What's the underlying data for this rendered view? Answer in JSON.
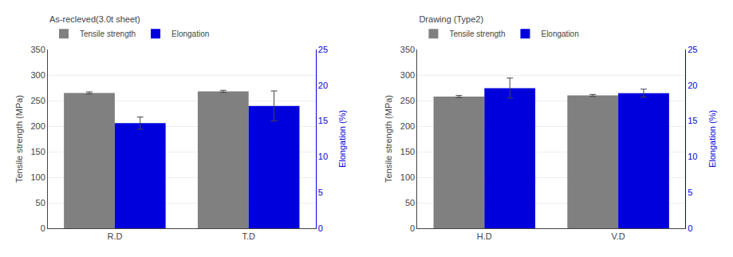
{
  "chart_data": [
    {
      "type": "bar",
      "title": "As-recleved(3.0t sheet)",
      "categories": [
        "R.D",
        "T.D"
      ],
      "series": [
        {
          "name": "Tensile strength",
          "color": "#808080",
          "values": [
            265,
            268
          ],
          "errors": [
            2,
            2
          ]
        },
        {
          "name": "Elongation",
          "color": "#0000dd",
          "values": [
            14.7,
            17.1
          ],
          "errors": [
            0.85,
            2.1
          ],
          "axis": "y2"
        }
      ],
      "ylabel": "Tensile strength (MPa)",
      "y2label": "Elongation (%)",
      "ylim": [
        0,
        350
      ],
      "yticks": [
        0,
        50,
        100,
        150,
        200,
        250,
        300,
        350
      ],
      "y2lim": [
        0,
        25
      ],
      "y2ticks": [
        0,
        5,
        10,
        15,
        20,
        25
      ],
      "legend": "upper left"
    },
    {
      "type": "bar",
      "title": "Drawing (Type2)",
      "categories": [
        "H.D",
        "V.D"
      ],
      "series": [
        {
          "name": "Tensile strength",
          "color": "#808080",
          "values": [
            258,
            260
          ],
          "errors": [
            2,
            2
          ]
        },
        {
          "name": "Elongation",
          "color": "#0000dd",
          "values": [
            19.6,
            18.9
          ],
          "errors": [
            1.4,
            0.55
          ],
          "axis": "y2"
        }
      ],
      "ylabel": "Tensile strength (MPa)",
      "y2label": "Elongation (%)",
      "ylim": [
        0,
        350
      ],
      "yticks": [
        0,
        50,
        100,
        150,
        200,
        250,
        300,
        350
      ],
      "y2lim": [
        0,
        25
      ],
      "y2ticks": [
        0,
        5,
        10,
        15,
        20,
        25
      ],
      "legend": "upper left"
    }
  ]
}
